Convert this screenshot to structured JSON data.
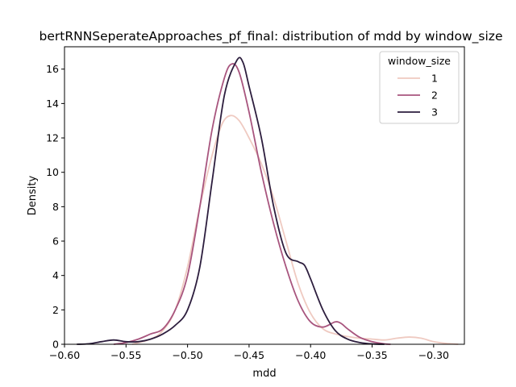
{
  "chart_data": {
    "type": "line",
    "title": "bertRNNSeperateApproaches_pf_final: distribution of mdd by window_size",
    "xlabel": "mdd",
    "ylabel": "Density",
    "xlim": [
      -0.6,
      -0.275
    ],
    "ylim": [
      0,
      17.3
    ],
    "xticks": [
      -0.6,
      -0.55,
      -0.5,
      -0.45,
      -0.4,
      -0.35,
      -0.3
    ],
    "xtick_labels": [
      "−0.60",
      "−0.55",
      "−0.50",
      "−0.45",
      "−0.40",
      "−0.35",
      "−0.30"
    ],
    "yticks": [
      0,
      2,
      4,
      6,
      8,
      10,
      12,
      14,
      16
    ],
    "ytick_labels": [
      "0",
      "2",
      "4",
      "6",
      "8",
      "10",
      "12",
      "14",
      "16"
    ],
    "grid": false,
    "legend": {
      "title": "window_size",
      "placement": "top-right"
    },
    "series": [
      {
        "name": "1",
        "color": "#efcac1",
        "points": [
          [
            -0.545,
            0.0
          ],
          [
            -0.53,
            0.3
          ],
          [
            -0.52,
            0.8
          ],
          [
            -0.51,
            2.0
          ],
          [
            -0.5,
            4.5
          ],
          [
            -0.49,
            8.0
          ],
          [
            -0.48,
            11.0
          ],
          [
            -0.472,
            12.8
          ],
          [
            -0.465,
            13.3
          ],
          [
            -0.458,
            13.0
          ],
          [
            -0.45,
            12.0
          ],
          [
            -0.44,
            10.5
          ],
          [
            -0.43,
            8.5
          ],
          [
            -0.42,
            6.0
          ],
          [
            -0.41,
            3.5
          ],
          [
            -0.4,
            1.8
          ],
          [
            -0.39,
            0.9
          ],
          [
            -0.38,
            0.6
          ],
          [
            -0.37,
            0.45
          ],
          [
            -0.36,
            0.35
          ],
          [
            -0.35,
            0.3
          ],
          [
            -0.34,
            0.25
          ],
          [
            -0.33,
            0.35
          ],
          [
            -0.32,
            0.42
          ],
          [
            -0.31,
            0.35
          ],
          [
            -0.3,
            0.15
          ],
          [
            -0.29,
            0.05
          ],
          [
            -0.28,
            0.0
          ]
        ]
      },
      {
        "name": "2",
        "color": "#a8557e",
        "points": [
          [
            -0.56,
            0.0
          ],
          [
            -0.55,
            0.1
          ],
          [
            -0.54,
            0.3
          ],
          [
            -0.53,
            0.6
          ],
          [
            -0.52,
            0.9
          ],
          [
            -0.51,
            2.0
          ],
          [
            -0.5,
            4.0
          ],
          [
            -0.49,
            8.0
          ],
          [
            -0.48,
            12.5
          ],
          [
            -0.47,
            15.5
          ],
          [
            -0.464,
            16.3
          ],
          [
            -0.458,
            15.8
          ],
          [
            -0.45,
            13.5
          ],
          [
            -0.44,
            10.0
          ],
          [
            -0.43,
            7.0
          ],
          [
            -0.42,
            4.5
          ],
          [
            -0.41,
            2.5
          ],
          [
            -0.4,
            1.3
          ],
          [
            -0.39,
            1.0
          ],
          [
            -0.38,
            1.3
          ],
          [
            -0.375,
            1.2
          ],
          [
            -0.37,
            0.9
          ],
          [
            -0.36,
            0.4
          ],
          [
            -0.35,
            0.15
          ],
          [
            -0.34,
            0.02
          ],
          [
            -0.335,
            0.0
          ]
        ]
      },
      {
        "name": "3",
        "color": "#2d1e3e",
        "points": [
          [
            -0.59,
            0.0
          ],
          [
            -0.58,
            0.03
          ],
          [
            -0.57,
            0.15
          ],
          [
            -0.56,
            0.25
          ],
          [
            -0.55,
            0.15
          ],
          [
            -0.54,
            0.15
          ],
          [
            -0.53,
            0.3
          ],
          [
            -0.52,
            0.6
          ],
          [
            -0.51,
            1.1
          ],
          [
            -0.5,
            2.0
          ],
          [
            -0.49,
            4.5
          ],
          [
            -0.48,
            9.5
          ],
          [
            -0.47,
            14.5
          ],
          [
            -0.46,
            16.5
          ],
          [
            -0.455,
            16.4
          ],
          [
            -0.45,
            15.0
          ],
          [
            -0.44,
            12.0
          ],
          [
            -0.43,
            8.0
          ],
          [
            -0.42,
            5.3
          ],
          [
            -0.41,
            4.8
          ],
          [
            -0.405,
            4.6
          ],
          [
            -0.4,
            3.8
          ],
          [
            -0.39,
            2.0
          ],
          [
            -0.38,
            0.8
          ],
          [
            -0.37,
            0.3
          ],
          [
            -0.36,
            0.1
          ],
          [
            -0.35,
            0.02
          ],
          [
            -0.34,
            0.0
          ]
        ]
      }
    ]
  }
}
